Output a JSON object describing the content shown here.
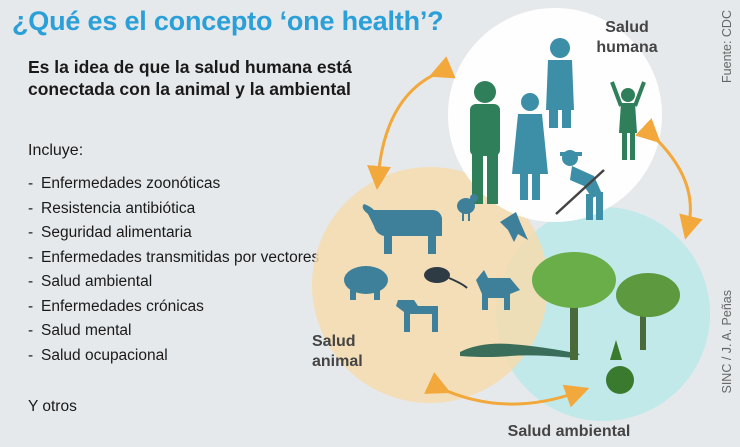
{
  "header": {
    "title": "¿Qué es el concepto ‘one health’?",
    "subtitle": "Es la idea de que la salud humana está conectada con la animal y la ambiental"
  },
  "list": {
    "heading": "Incluye:",
    "items": [
      "Enfermedades zoonóticas",
      "Resistencia antibiótica",
      "Seguridad alimentaria",
      "Enfermedades transmitidas por vectores",
      "Salud ambiental",
      "Enfermedades crónicas",
      "Salud mental",
      "Salud ocupacional"
    ],
    "footer": "Y otros"
  },
  "circles": {
    "human": "Salud humana",
    "animal": "Salud animal",
    "environment": "Salud ambiental"
  },
  "colors": {
    "title": "#2a9fd8",
    "human_circle": "#ffffff",
    "animal_circle": "#f6dcae",
    "environment_circle": "#bfe9ea",
    "arrows": "#f2a83a",
    "people": "#2f7f5a",
    "animals": "#3e7f9a"
  },
  "source": "Fuente: CDC",
  "credit": "SINC / J. A. Peñas"
}
